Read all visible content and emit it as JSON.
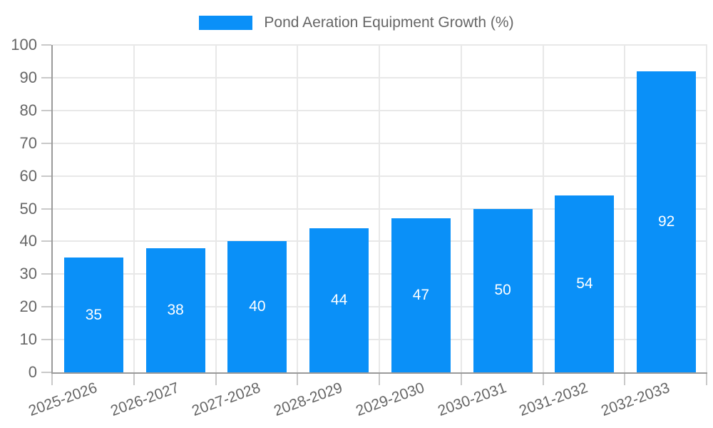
{
  "legend": {
    "label": "Pond Aeration Equipment Growth (%)"
  },
  "chart_data": {
    "type": "bar",
    "title": "Pond Aeration Equipment Growth (%)",
    "categories": [
      "2025-2026",
      "2026-2027",
      "2027-2028",
      "2028-2029",
      "2029-2030",
      "2030-2031",
      "2031-2032",
      "2032-2033"
    ],
    "values": [
      35,
      38,
      40,
      44,
      47,
      50,
      54,
      92
    ],
    "xlabel": "",
    "ylabel": "",
    "ylim": [
      0,
      100
    ],
    "y_ticks": [
      0,
      10,
      20,
      30,
      40,
      50,
      60,
      70,
      80,
      90,
      100
    ],
    "grid": true,
    "legend_position": "top",
    "value_labels": "centered-inside-bars"
  },
  "colors": {
    "bar": "#0a90f8",
    "grid": "#e8e8e8",
    "axis": "#9a9a9a",
    "tick_mark": "#c9c9c9",
    "tick_text": "#666666",
    "value_text": "#ffffff",
    "background": "#ffffff"
  }
}
